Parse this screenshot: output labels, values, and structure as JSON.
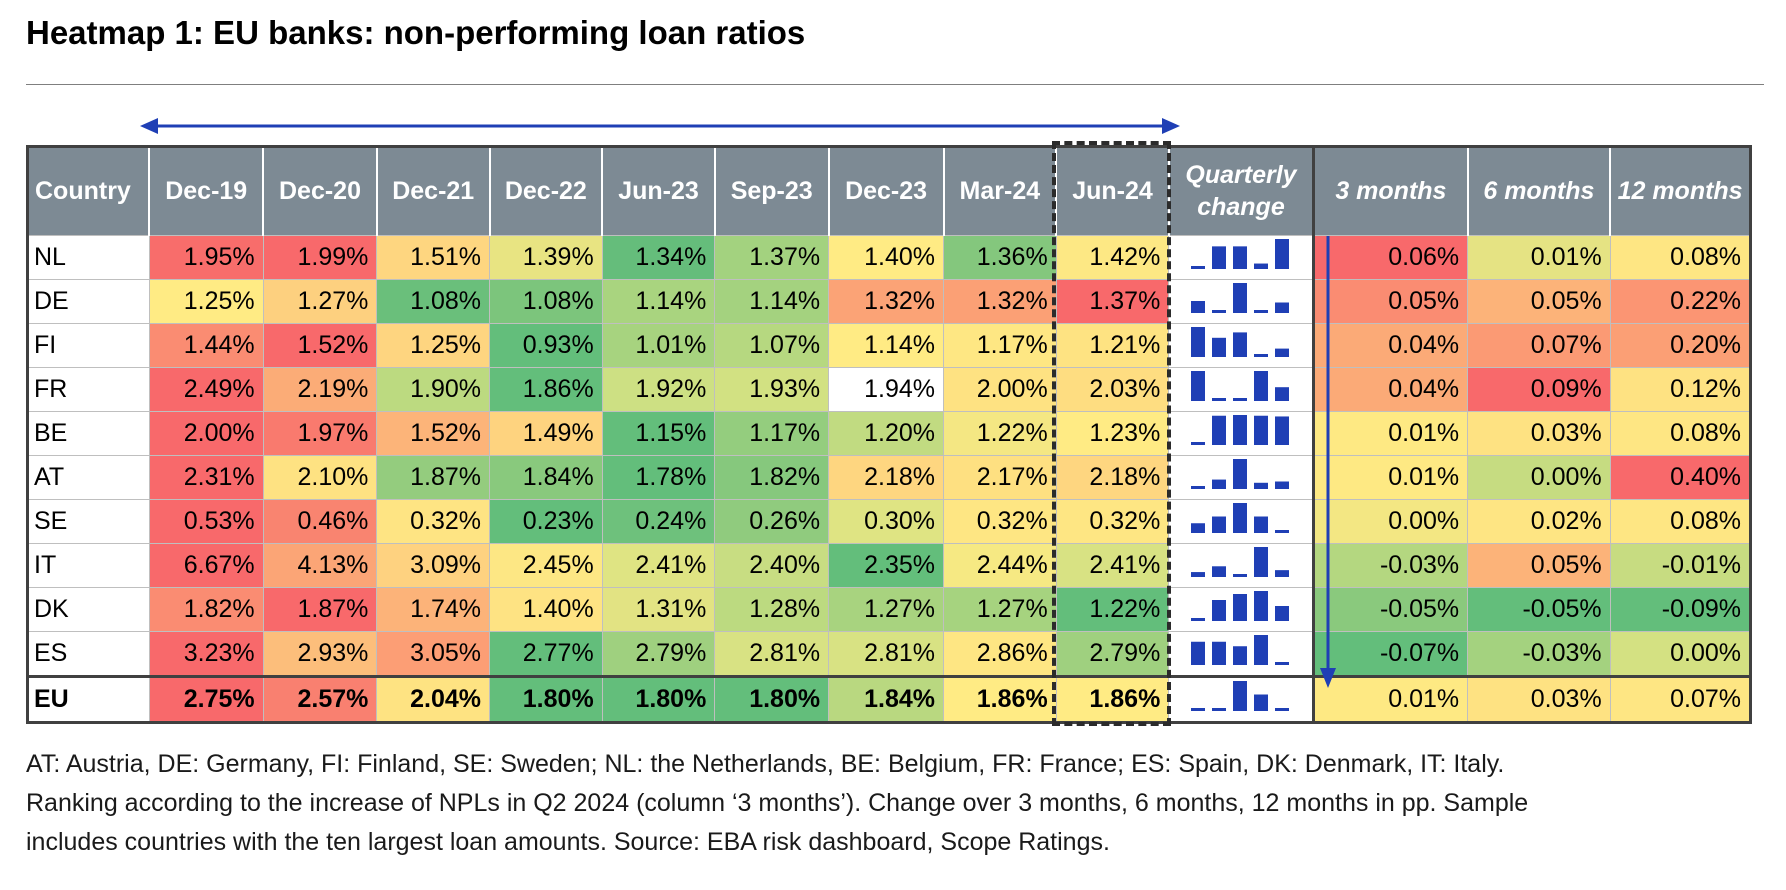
{
  "title": "Heatmap 1: EU banks: non-performing loan ratios",
  "headers": {
    "country": "Country",
    "periods": [
      "Dec-19",
      "Dec-20",
      "Dec-21",
      "Dec-22",
      "Jun-23",
      "Sep-23",
      "Dec-23",
      "Mar-24",
      "Jun-24"
    ],
    "quarterly_change": "Quarterly change",
    "changes": [
      "3 months",
      "6 months",
      "12 months"
    ]
  },
  "chart_data": {
    "type": "heatmap",
    "title": "Heatmap 1: EU banks: non-performing loan ratios",
    "unit": "%",
    "change_unit": "pp",
    "rows": [
      {
        "country": "NL",
        "values": [
          1.95,
          1.99,
          1.51,
          1.39,
          1.34,
          1.37,
          1.4,
          1.36,
          1.42
        ],
        "changes": [
          0.06,
          0.01,
          0.08
        ],
        "colors": [
          "#f86d6b",
          "#f8696b",
          "#fed680",
          "#e8e482",
          "#65bd7b",
          "#a3d27f",
          "#ffeb84",
          "#84c77d",
          "#fde884"
        ],
        "change_colors": [
          "#f8696b",
          "#e5e383",
          "#fee683"
        ]
      },
      {
        "country": "DE",
        "values": [
          1.25,
          1.27,
          1.08,
          1.08,
          1.14,
          1.14,
          1.32,
          1.32,
          1.37
        ],
        "changes": [
          0.05,
          0.05,
          0.22
        ],
        "colors": [
          "#ffeb84",
          "#fdd07f",
          "#6abf7b",
          "#7cc57c",
          "#a9d47f",
          "#a4d27f",
          "#fba376",
          "#fba075",
          "#f8696b"
        ],
        "change_colors": [
          "#fa8c72",
          "#fcb379",
          "#fb9573"
        ]
      },
      {
        "country": "FI",
        "values": [
          1.44,
          1.52,
          1.25,
          0.93,
          1.01,
          1.07,
          1.14,
          1.17,
          1.21
        ],
        "changes": [
          0.04,
          0.07,
          0.2
        ],
        "colors": [
          "#fa8c72",
          "#f8696b",
          "#fed580",
          "#63be7b",
          "#a7d37f",
          "#b6d880",
          "#ffeb84",
          "#fee783",
          "#fee382"
        ],
        "change_colors": [
          "#fbaa77",
          "#fb9a74",
          "#fb9f75"
        ]
      },
      {
        "country": "FR",
        "values": [
          2.49,
          2.19,
          1.9,
          1.86,
          1.92,
          1.93,
          1.94,
          2.0,
          2.03
        ],
        "changes": [
          0.04,
          0.09,
          0.12
        ],
        "colors": [
          "#f8696b",
          "#fbac77",
          "#bcda80",
          "#63be7b",
          "#cde083",
          "#d2e182",
          "#ddе483",
          "#fee282",
          "#fedd81"
        ],
        "change_colors": [
          "#fbaa77",
          "#f8696b",
          "#fee282"
        ]
      },
      {
        "country": "BE",
        "values": [
          2.0,
          1.97,
          1.52,
          1.49,
          1.15,
          1.17,
          1.2,
          1.22,
          1.23
        ],
        "changes": [
          0.01,
          0.03,
          0.08
        ],
        "colors": [
          "#f8696b",
          "#f97a6e",
          "#fcb479",
          "#fed37f",
          "#63be7b",
          "#94cd7e",
          "#c1db81",
          "#f4e783",
          "#ffeb84"
        ],
        "change_colors": [
          "#fee983",
          "#fee282",
          "#fee683"
        ]
      },
      {
        "country": "AT",
        "values": [
          2.31,
          2.1,
          1.87,
          1.84,
          1.78,
          1.82,
          2.18,
          2.17,
          2.18
        ],
        "changes": [
          0.01,
          0.0,
          0.4
        ],
        "colors": [
          "#f8696b",
          "#fee282",
          "#94cc7e",
          "#89c97d",
          "#63be7b",
          "#86c87d",
          "#fed680",
          "#fee081",
          "#fed680"
        ],
        "change_colors": [
          "#fee983",
          "#c6dc81",
          "#f8696b"
        ]
      },
      {
        "country": "SE",
        "values": [
          0.53,
          0.46,
          0.32,
          0.23,
          0.24,
          0.26,
          0.3,
          0.32,
          0.32
        ],
        "changes": [
          0.0,
          0.02,
          0.08
        ],
        "colors": [
          "#f8696b",
          "#f98470",
          "#fee483",
          "#63be7b",
          "#6ec17c",
          "#90cb7e",
          "#dfe483",
          "#fee683",
          "#fee683"
        ],
        "change_colors": [
          "#f3e783",
          "#fee583",
          "#fee683"
        ]
      },
      {
        "country": "IT",
        "values": [
          6.67,
          4.13,
          3.09,
          2.45,
          2.41,
          2.4,
          2.35,
          2.44,
          2.41
        ],
        "changes": [
          -0.03,
          0.05,
          -0.01
        ],
        "colors": [
          "#f8696b",
          "#fba576",
          "#fed280",
          "#fde784",
          "#dfe483",
          "#c8dd82",
          "#63be7b",
          "#f6e983",
          "#d8e283"
        ],
        "change_colors": [
          "#b4d780",
          "#fcb379",
          "#c7dc81"
        ]
      },
      {
        "country": "DK",
        "values": [
          1.82,
          1.87,
          1.74,
          1.4,
          1.31,
          1.28,
          1.27,
          1.27,
          1.22
        ],
        "changes": [
          -0.05,
          -0.05,
          -0.09
        ],
        "colors": [
          "#fa8c72",
          "#f8696b",
          "#fcb379",
          "#fee383",
          "#e2e383",
          "#bcda80",
          "#a8d37f",
          "#a6d37f",
          "#63be7b"
        ],
        "change_colors": [
          "#8ac97d",
          "#63be7b",
          "#63be7b"
        ]
      },
      {
        "country": "ES",
        "values": [
          3.23,
          2.93,
          3.05,
          2.77,
          2.79,
          2.81,
          2.81,
          2.86,
          2.79
        ],
        "changes": [
          -0.07,
          -0.03,
          0.0
        ],
        "colors": [
          "#f8696b",
          "#fcbe7b",
          "#fc9e75",
          "#63be7b",
          "#9fd07f",
          "#d8e283",
          "#d8e283",
          "#fee683",
          "#9fd07f"
        ],
        "change_colors": [
          "#63be7b",
          "#a4d27f",
          "#d4e182"
        ]
      },
      {
        "country": "EU",
        "values": [
          2.75,
          2.57,
          2.04,
          1.8,
          1.8,
          1.8,
          1.84,
          1.86,
          1.86
        ],
        "changes": [
          0.01,
          0.03,
          0.07
        ],
        "colors": [
          "#f8696b",
          "#f98070",
          "#fee382",
          "#63be7b",
          "#63be7b",
          "#63be7b",
          "#b9d880",
          "#ffeb84",
          "#ffeb84"
        ],
        "change_colors": [
          "#fee983",
          "#fee282",
          "#fee683"
        ]
      }
    ],
    "formatted": {
      "NL": {
        "values": [
          "1.95%",
          "1.99%",
          "1.51%",
          "1.39%",
          "1.34%",
          "1.37%",
          "1.40%",
          "1.36%",
          "1.42%"
        ],
        "changes": [
          "0.06%",
          "0.01%",
          "0.08%"
        ]
      }
    }
  },
  "footnote": [
    "AT: Austria, DE: Germany, FI: Finland, SE: Sweden; NL: the Netherlands, BE: Belgium, FR: France; ES: Spain, DK: Denmark, IT: Italy.",
    "Ranking according to the increase of NPLs in Q2 2024 (column ‘3 months’). Change over 3 months, 6 months, 12 months in pp. Sample",
    "includes countries with the ten largest loan amounts. Source: EBA risk dashboard, Scope Ratings."
  ],
  "colors": {
    "header_bg": "#7d8a94",
    "accent_arrow": "#1f3fb5",
    "spark_bar": "#1f3fb5"
  }
}
